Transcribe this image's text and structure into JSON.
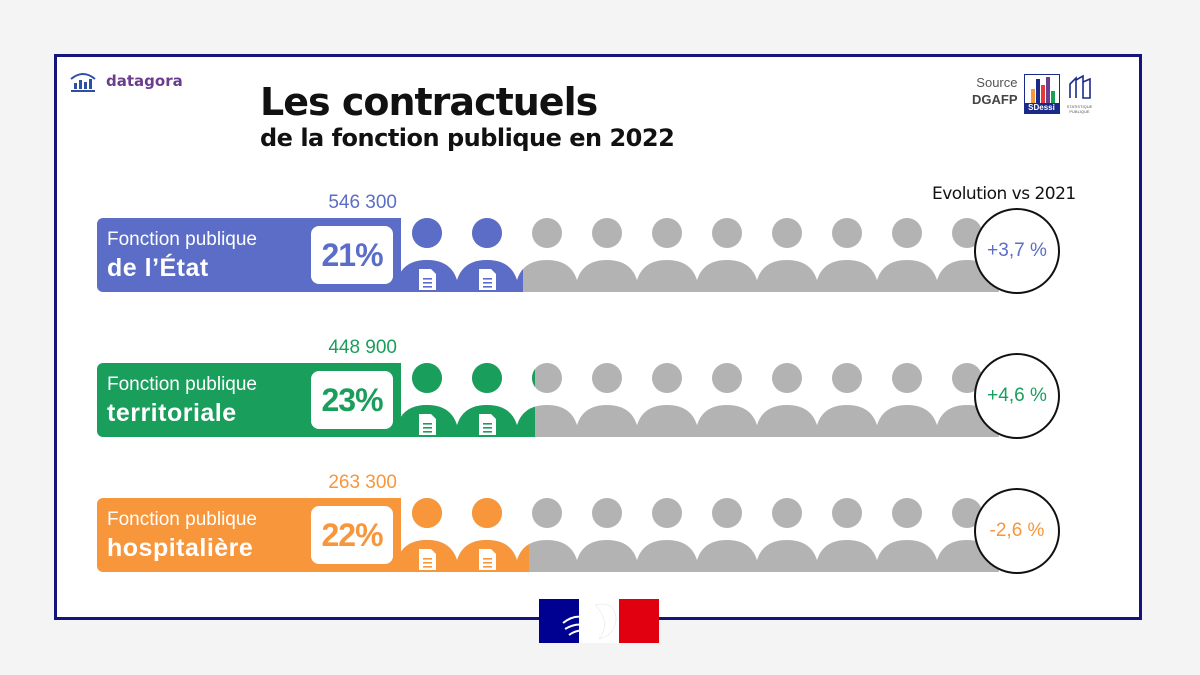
{
  "brand": {
    "name": "datagora"
  },
  "title": "Les contractuels",
  "subtitle": "de la fonction publique en 2022",
  "source": {
    "label": "Source",
    "name": "DGAFP",
    "logo_label": "SDessi",
    "ssp_label": "STATISTIQUE PUBLIQUE"
  },
  "evolution_title": "Evolution vs 2021",
  "colors": {
    "etat": "#5b6dc6",
    "territoriale": "#1a9e5c",
    "hospitaliere": "#f7963b",
    "grey": "#b3b3b3",
    "frame": "#14147a"
  },
  "chart_data": {
    "type": "pictogram",
    "title": "Les contractuels de la fonction publique en 2022",
    "unit_icon": "person",
    "icons_per_row": 10,
    "series": [
      {
        "id": "etat",
        "line1": "Fonction publique",
        "line2": "de l’État",
        "count": "546 300",
        "pct_label": "21%",
        "share": 21,
        "evolution": "+3,7 %"
      },
      {
        "id": "territoriale",
        "line1": "Fonction publique",
        "line2": "territoriale",
        "count": "448 900",
        "pct_label": "23%",
        "share": 23,
        "evolution": "+4,6 %"
      },
      {
        "id": "hospitaliere",
        "line1": "Fonction publique",
        "line2": "hospitalière",
        "count": "263 300",
        "pct_label": "22%",
        "share": 22,
        "evolution": "-2,6 %"
      }
    ]
  }
}
